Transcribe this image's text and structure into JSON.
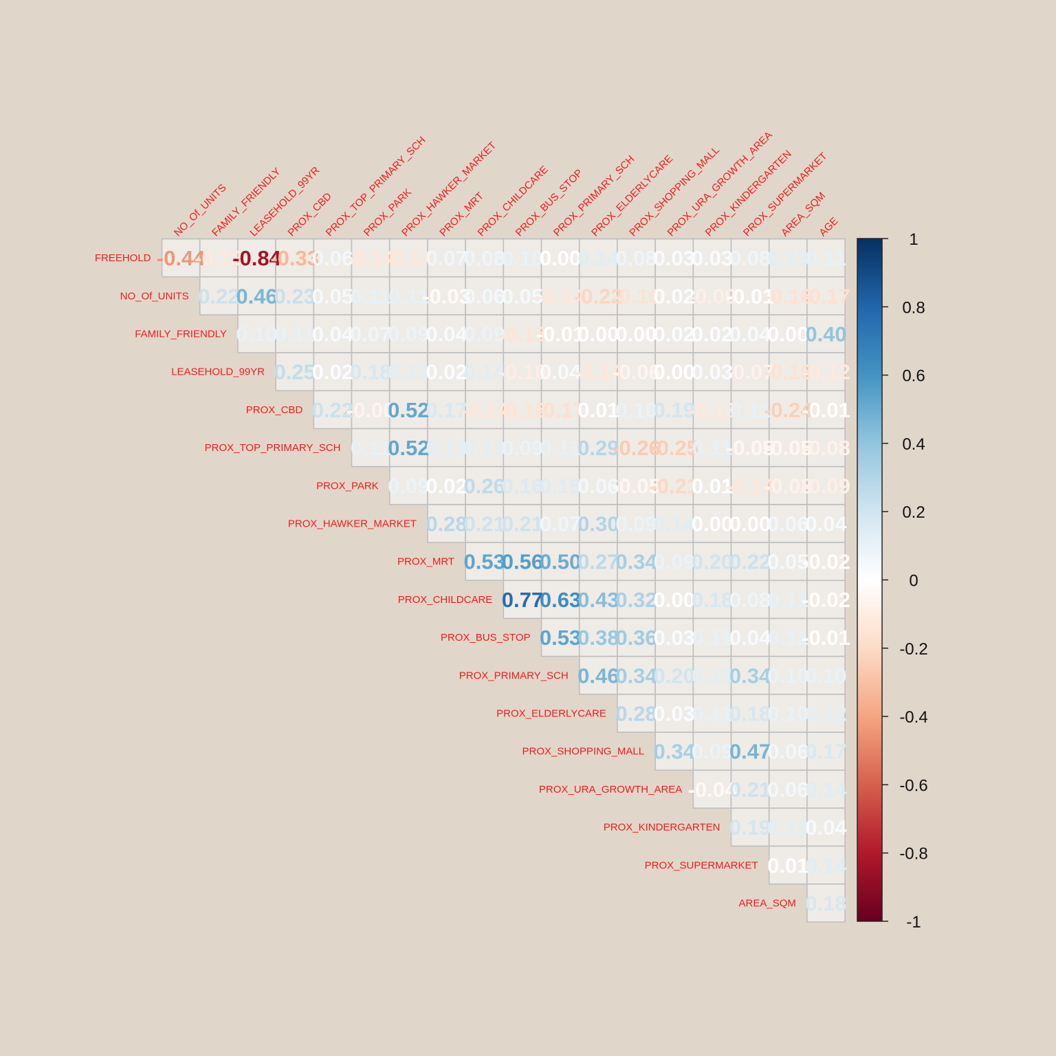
{
  "chart_data": {
    "type": "heatmap",
    "title": "",
    "subtitle": "",
    "layout": "upper-triangle",
    "method": "color",
    "number_labels": true,
    "variables": [
      "FREEHOLD",
      "NO_Of_UNITS",
      "FAMILY_FRIENDLY",
      "LEASEHOLD_99YR",
      "PROX_CBD",
      "PROX_TOP_PRIMARY_SCH",
      "PROX_PARK",
      "PROX_HAWKER_MARKET",
      "PROX_MRT",
      "PROX_CHILDCARE",
      "PROX_BUS_STOP",
      "PROX_PRIMARY_SCH",
      "PROX_ELDERLYCARE",
      "PROX_SHOPPING_MALL",
      "PROX_URA_GROWTH_AREA",
      "PROX_KINDERGARTEN",
      "PROX_SUPERMARKET",
      "AREA_SQM",
      "AGE"
    ],
    "row_labels": [
      "FREEHOLD",
      "NO_Of_UNITS",
      "FAMILY_FRIENDLY",
      "LEASEHOLD_99YR",
      "PROX_CBD",
      "PROX_TOP_PRIMARY_SCH",
      "PROX_PARK",
      "PROX_HAWKER_MARKET",
      "PROX_MRT",
      "PROX_CHILDCARE",
      "PROX_BUS_STOP",
      "PROX_PRIMARY_SCH",
      "PROX_ELDERLYCARE",
      "PROX_SHOPPING_MALL",
      "PROX_URA_GROWTH_AREA",
      "PROX_KINDERGARTEN",
      "PROX_SUPERMARKET",
      "AREA_SQM"
    ],
    "col_labels": [
      "NO_Of_UNITS",
      "FAMILY_FRIENDLY",
      "LEASEHOLD_99YR",
      "PROX_CBD",
      "PROX_TOP_PRIMARY_SCH",
      "PROX_PARK",
      "PROX_HAWKER_MARKET",
      "PROX_MRT",
      "PROX_CHILDCARE",
      "PROX_BUS_STOP",
      "PROX_PRIMARY_SCH",
      "PROX_ELDERLYCARE",
      "PROX_SHOPPING_MALL",
      "PROX_URA_GROWTH_AREA",
      "PROX_KINDERGARTEN",
      "PROX_SUPERMARKET",
      "AREA_SQM",
      "AGE"
    ],
    "values": [
      [
        -0.44,
        -0.12,
        -0.84,
        -0.33,
        0.06,
        -0.14,
        -0.14,
        0.07,
        0.08,
        0.1,
        0.0,
        0.14,
        0.08,
        0.03,
        0.03,
        0.08,
        0.13,
        0.11
      ],
      [
        0.22,
        0.46,
        0.23,
        0.05,
        0.11,
        0.11,
        -0.03,
        0.06,
        0.05,
        -0.14,
        -0.22,
        -0.16,
        0.02,
        -0.09,
        -0.01,
        -0.16,
        -0.17
      ],
      [
        0.1,
        0.11,
        0.04,
        0.07,
        0.09,
        0.04,
        0.09,
        -0.15,
        -0.01,
        0.0,
        0.0,
        0.02,
        0.02,
        0.04,
        0.0,
        0.4
      ],
      [
        0.25,
        0.02,
        0.18,
        0.13,
        0.02,
        0.14,
        -0.1,
        0.04,
        -0.14,
        -0.06,
        0.0,
        0.03,
        -0.07,
        -0.16,
        -0.12
      ],
      [
        0.22,
        -0.06,
        0.52,
        0.17,
        -0.14,
        -0.15,
        -0.17,
        0.01,
        0.1,
        0.19,
        -0.13,
        0.11,
        -0.24,
        -0.01
      ],
      [
        0.11,
        0.52,
        0.13,
        0.13,
        0.09,
        0.11,
        0.29,
        -0.26,
        -0.25,
        0.11,
        -0.05,
        -0.05,
        -0.08
      ],
      [
        0.09,
        0.02,
        0.26,
        0.16,
        0.15,
        0.06,
        -0.05,
        -0.21,
        0.01,
        -0.14,
        -0.08,
        -0.09
      ],
      [
        0.28,
        0.21,
        0.21,
        0.07,
        0.3,
        0.09,
        0.14,
        0.0,
        0.0,
        0.06,
        0.04
      ],
      [
        0.53,
        0.56,
        0.5,
        0.27,
        0.34,
        0.09,
        0.2,
        0.22,
        0.05,
        -0.02
      ],
      [
        0.77,
        0.63,
        0.43,
        0.32,
        0.0,
        0.18,
        0.08,
        0.11,
        -0.02
      ],
      [
        0.53,
        0.38,
        0.36,
        0.03,
        0.11,
        0.04,
        0.11,
        -0.01
      ],
      [
        0.46,
        0.34,
        0.2,
        0.13,
        0.34,
        0.1,
        0.1
      ],
      [
        0.28,
        0.03,
        0.11,
        0.18,
        0.1,
        0.12
      ],
      [
        0.34,
        0.09,
        0.47,
        0.06,
        0.17
      ],
      [
        -0.04,
        0.21,
        0.06,
        0.14
      ],
      [
        0.19,
        0.13,
        0.04
      ],
      [
        0.01,
        0.14
      ],
      [
        0.18
      ]
    ],
    "colorbar": {
      "range": [
        -1,
        1
      ],
      "ticks": [
        "1",
        "0.8",
        "0.6",
        "0.4",
        "0.2",
        "0",
        "-0.2",
        "-0.4",
        "-0.6",
        "-0.8",
        "-1"
      ],
      "palette": [
        "#67001f",
        "#b2182b",
        "#d6604d",
        "#f4a582",
        "#fddbc7",
        "#ffffff",
        "#d1e5f0",
        "#92c5de",
        "#4393c3",
        "#2166ac",
        "#053061"
      ]
    },
    "colors": {
      "background": "#e1d6ca",
      "label": "#ee1c1c",
      "grid": "#bebebe"
    }
  }
}
